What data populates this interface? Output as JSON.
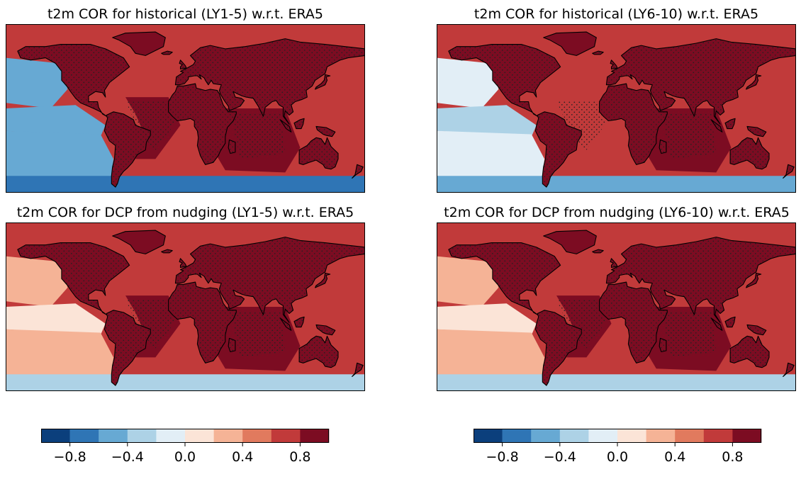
{
  "panels": [
    {
      "title": "t2m COR for historical (LY1-5) w.r.t. ERA5"
    },
    {
      "title": "t2m COR for historical (LY6-10) w.r.t. ERA5"
    },
    {
      "title": "t2m COR for DCP from nudging (LY1-5) w.r.t. ERA5"
    },
    {
      "title": "t2m COR for DCP from nudging (LY6-10) w.r.t. ERA5"
    }
  ],
  "colors": {
    "levels": [
      "#0b3f7c",
      "#2f75b5",
      "#67a9d3",
      "#add2e6",
      "#e2eef6",
      "#fbe4d7",
      "#f5b396",
      "#e17a5e",
      "#c13a3a",
      "#7c0c22"
    ],
    "coast": "#000000",
    "frame": "#000000"
  },
  "chart_data": [
    {
      "type": "heatmap",
      "title": "t2m COR for historical (LY1-5) w.r.t. ERA5",
      "value_range": [
        -1.0,
        1.0
      ],
      "levels": [
        -1.0,
        -0.8,
        -0.6,
        -0.4,
        -0.2,
        0.0,
        0.2,
        0.4,
        0.6,
        0.8,
        1.0
      ],
      "stippling": "significant",
      "regions": [
        {
          "name": "land",
          "value": 0.85
        },
        {
          "name": "NE Pacific",
          "value": -0.6
        },
        {
          "name": "Eq. E Pacific",
          "value": -0.4
        },
        {
          "name": "SE Pacific",
          "value": -0.5
        },
        {
          "name": "Southern Ocean",
          "value": -0.7
        },
        {
          "name": "Tropical Atlantic",
          "value": 0.8
        },
        {
          "name": "Indian Ocean",
          "value": 0.85
        }
      ]
    },
    {
      "type": "heatmap",
      "title": "t2m COR for historical (LY6-10) w.r.t. ERA5",
      "value_range": [
        -1.0,
        1.0
      ],
      "levels": [
        -1.0,
        -0.8,
        -0.6,
        -0.4,
        -0.2,
        0.0,
        0.2,
        0.4,
        0.6,
        0.8,
        1.0
      ],
      "stippling": "significant",
      "regions": [
        {
          "name": "land",
          "value": 0.8
        },
        {
          "name": "NE Pacific",
          "value": -0.2
        },
        {
          "name": "Eq. E Pacific",
          "value": -0.3
        },
        {
          "name": "SE Pacific",
          "value": -0.2
        },
        {
          "name": "Southern Ocean",
          "value": -0.6
        },
        {
          "name": "Tropical Atlantic",
          "value": 0.75
        },
        {
          "name": "Indian Ocean",
          "value": 0.85
        }
      ]
    },
    {
      "type": "heatmap",
      "title": "t2m COR for DCP from nudging (LY1-5) w.r.t. ERA5",
      "value_range": [
        -1.0,
        1.0
      ],
      "levels": [
        -1.0,
        -0.8,
        -0.6,
        -0.4,
        -0.2,
        0.0,
        0.2,
        0.4,
        0.6,
        0.8,
        1.0
      ],
      "stippling": "significant",
      "regions": [
        {
          "name": "land",
          "value": 0.85
        },
        {
          "name": "NE Pacific",
          "value": 0.3
        },
        {
          "name": "Eq. E Pacific",
          "value": 0.1
        },
        {
          "name": "SE Pacific",
          "value": 0.4
        },
        {
          "name": "Southern Ocean",
          "value": -0.3
        },
        {
          "name": "Tropical Atlantic",
          "value": 0.8
        },
        {
          "name": "Indian Ocean",
          "value": 0.85
        }
      ]
    },
    {
      "type": "heatmap",
      "title": "t2m COR for DCP from nudging (LY6-10) w.r.t. ERA5",
      "value_range": [
        -1.0,
        1.0
      ],
      "levels": [
        -1.0,
        -0.8,
        -0.6,
        -0.4,
        -0.2,
        0.0,
        0.2,
        0.4,
        0.6,
        0.8,
        1.0
      ],
      "stippling": "significant",
      "regions": [
        {
          "name": "land",
          "value": 0.8
        },
        {
          "name": "NE Pacific",
          "value": 0.3
        },
        {
          "name": "Eq. E Pacific",
          "value": 0.2
        },
        {
          "name": "SE Pacific",
          "value": 0.4
        },
        {
          "name": "Southern Ocean",
          "value": -0.3
        },
        {
          "name": "Tropical Atlantic",
          "value": 0.8
        },
        {
          "name": "Indian Ocean",
          "value": 0.85
        }
      ]
    }
  ],
  "colorbars": [
    {
      "ticks": [
        "−0.8",
        "−0.4",
        "0.0",
        "0.4",
        "0.8"
      ],
      "tick_values": [
        -0.8,
        -0.4,
        0.0,
        0.4,
        0.8
      ],
      "range": [
        -1.0,
        1.0
      ]
    },
    {
      "ticks": [
        "−0.8",
        "−0.4",
        "0.0",
        "0.4",
        "0.8"
      ],
      "tick_values": [
        -0.8,
        -0.4,
        0.0,
        0.4,
        0.8
      ],
      "range": [
        -1.0,
        1.0
      ]
    }
  ]
}
